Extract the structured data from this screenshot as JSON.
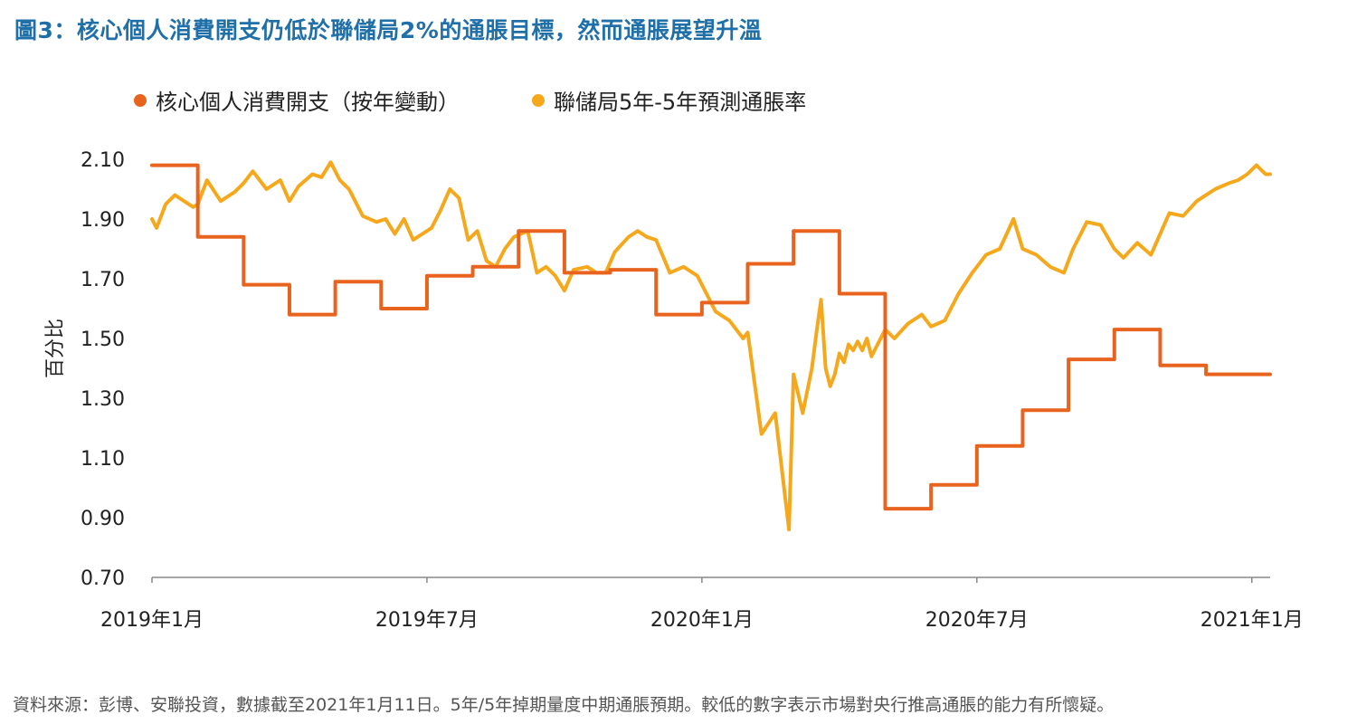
{
  "title": "圖3：核心個人消費開支仍低於聯儲局2%的通脹目標，然而通脹展望升溫",
  "source": "資料來源：彭博、安聯投資，數據截至2021年1月11日。5年/5年掉期量度中期通脹預期。較低的數字表示市場對央行推高通脹的能力有所懷疑。",
  "colors": {
    "pce": "#e8641e",
    "breakeven": "#f5a81c",
    "title": "#1f6fa8"
  },
  "chart_data": {
    "type": "line",
    "ylabel": "百分比",
    "ylim": [
      0.7,
      2.1
    ],
    "y_ticks": [
      "2.10",
      "1.90",
      "1.70",
      "1.50",
      "1.30",
      "1.10",
      "0.90",
      "0.70"
    ],
    "x_ticks": [
      "2019年1月",
      "2019年7月",
      "2020年1月",
      "2020年7月",
      "2021年1月"
    ],
    "x_tick_values": [
      0,
      6,
      12,
      18,
      24
    ],
    "xlim": [
      0,
      24.4
    ],
    "legend_position": "top-left",
    "grid": false,
    "series": [
      {
        "name": "核心個人消費開支（按年變動）",
        "step": true,
        "x": [
          0,
          1,
          2,
          3,
          4,
          5,
          6,
          7,
          8,
          9,
          10,
          11,
          12,
          13,
          14,
          15,
          16,
          17,
          18,
          19,
          20,
          21,
          22,
          23,
          24.4
        ],
        "values": [
          2.08,
          1.84,
          1.68,
          1.58,
          1.69,
          1.6,
          1.71,
          1.74,
          1.86,
          1.72,
          1.73,
          1.58,
          1.62,
          1.75,
          1.86,
          1.65,
          0.93,
          1.01,
          1.14,
          1.26,
          1.43,
          1.53,
          1.41,
          1.38,
          1.38
        ]
      },
      {
        "name": "聯儲局5年-5年預測通脹率",
        "step": false,
        "x": [
          0,
          0.1,
          0.3,
          0.5,
          0.7,
          0.9,
          1.0,
          1.2,
          1.5,
          1.8,
          2.0,
          2.2,
          2.5,
          2.8,
          3.0,
          3.2,
          3.5,
          3.7,
          3.9,
          4.1,
          4.3,
          4.6,
          4.9,
          5.1,
          5.3,
          5.5,
          5.7,
          5.9,
          6.1,
          6.3,
          6.5,
          6.7,
          6.9,
          7.1,
          7.3,
          7.5,
          7.7,
          7.9,
          8.2,
          8.4,
          8.6,
          8.8,
          9.0,
          9.2,
          9.5,
          9.7,
          9.9,
          10.1,
          10.4,
          10.6,
          10.8,
          11.0,
          11.3,
          11.6,
          11.9,
          12.1,
          12.3,
          12.6,
          12.9,
          13.0,
          13.3,
          13.6,
          13.9,
          14.0,
          14.2,
          14.4,
          14.5,
          14.6,
          14.7,
          14.8,
          14.9,
          15.0,
          15.1,
          15.2,
          15.3,
          15.4,
          15.5,
          15.6,
          15.7,
          15.8,
          16.0,
          16.2,
          16.5,
          16.8,
          17.0,
          17.3,
          17.6,
          17.9,
          18.0,
          18.2,
          18.5,
          18.8,
          19.0,
          19.3,
          19.6,
          19.9,
          20.1,
          20.4,
          20.7,
          21.0,
          21.2,
          21.5,
          21.8,
          22.0,
          22.2,
          22.5,
          22.8,
          23.0,
          23.2,
          23.5,
          23.7,
          23.9,
          24.1,
          24.3,
          24.4
        ],
        "values": [
          1.9,
          1.87,
          1.95,
          1.98,
          1.96,
          1.94,
          1.95,
          2.03,
          1.96,
          1.99,
          2.02,
          2.06,
          2.0,
          2.03,
          1.96,
          2.01,
          2.05,
          2.04,
          2.09,
          2.03,
          2.0,
          1.91,
          1.89,
          1.9,
          1.85,
          1.9,
          1.83,
          1.85,
          1.87,
          1.93,
          2.0,
          1.97,
          1.83,
          1.86,
          1.76,
          1.74,
          1.8,
          1.84,
          1.86,
          1.72,
          1.74,
          1.71,
          1.66,
          1.73,
          1.74,
          1.72,
          1.72,
          1.79,
          1.84,
          1.86,
          1.84,
          1.83,
          1.72,
          1.74,
          1.71,
          1.65,
          1.59,
          1.56,
          1.5,
          1.52,
          1.18,
          1.25,
          0.86,
          1.38,
          1.25,
          1.4,
          1.52,
          1.63,
          1.4,
          1.34,
          1.38,
          1.45,
          1.42,
          1.48,
          1.46,
          1.49,
          1.46,
          1.5,
          1.44,
          1.47,
          1.53,
          1.5,
          1.55,
          1.58,
          1.54,
          1.56,
          1.65,
          1.72,
          1.74,
          1.78,
          1.8,
          1.9,
          1.8,
          1.78,
          1.74,
          1.72,
          1.8,
          1.89,
          1.88,
          1.8,
          1.77,
          1.82,
          1.78,
          1.85,
          1.92,
          1.91,
          1.96,
          1.98,
          2.0,
          2.02,
          2.03,
          2.05,
          2.08,
          2.05,
          2.05
        ]
      }
    ]
  }
}
